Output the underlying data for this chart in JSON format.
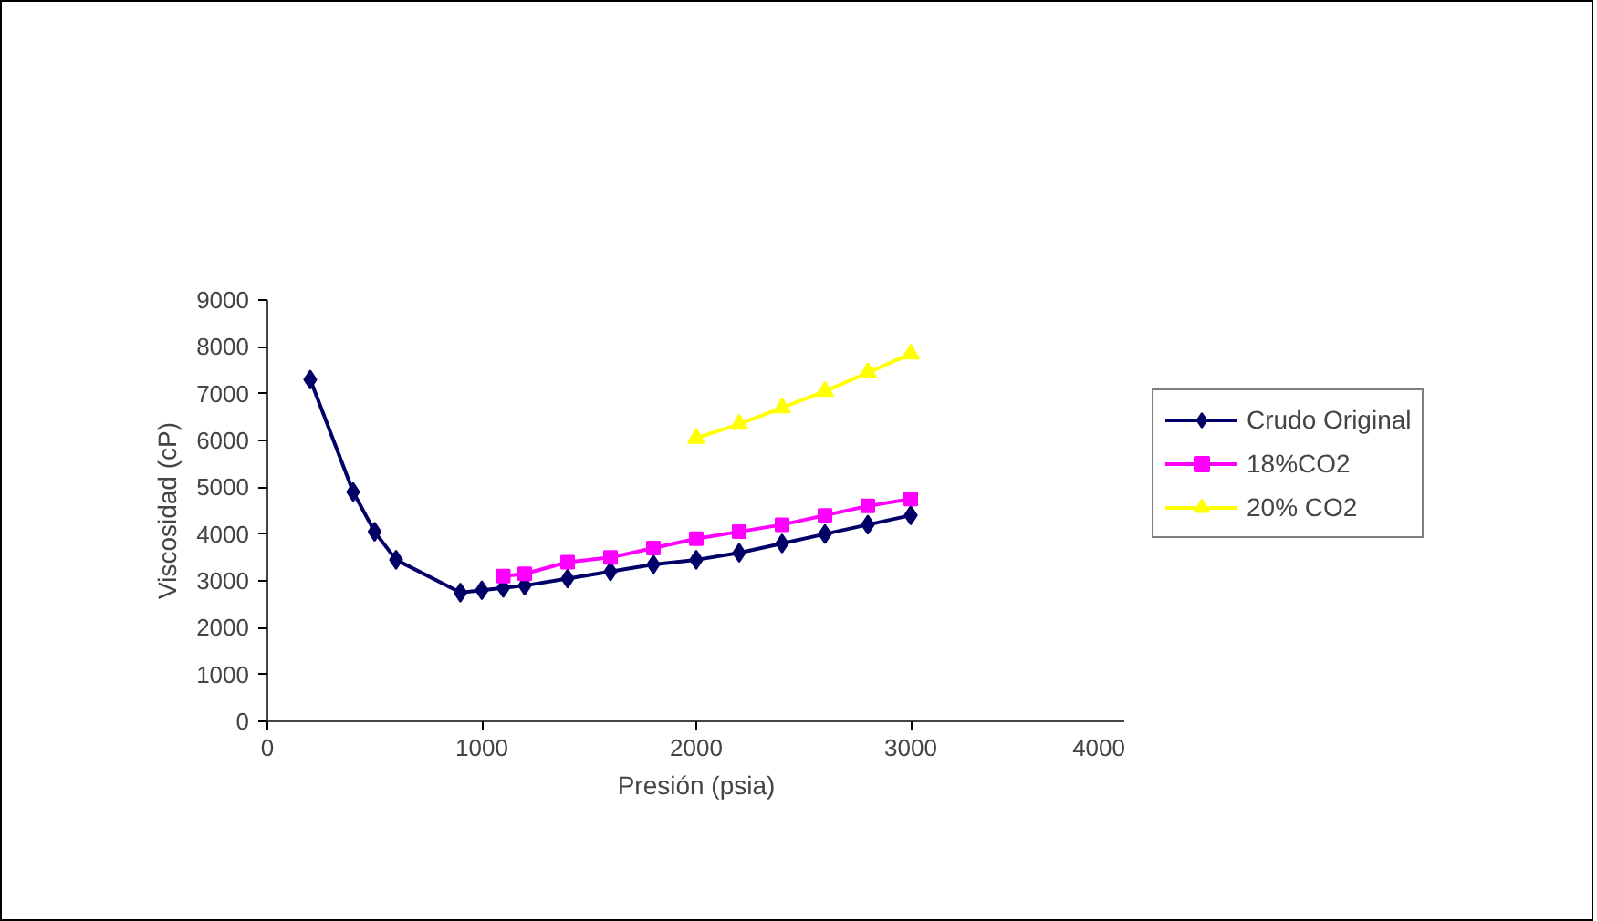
{
  "chart_data": {
    "type": "line",
    "xlabel": "Presión (psia)",
    "ylabel": "Viscosidad (cP)",
    "xlim": [
      0,
      4000
    ],
    "xticks": [
      0,
      1000,
      2000,
      3000,
      4000
    ],
    "ylim": [
      0,
      9000
    ],
    "yticks": [
      0,
      1000,
      2000,
      3000,
      4000,
      5000,
      6000,
      7000,
      8000,
      9000
    ],
    "grid": false,
    "legend": "right",
    "series": [
      {
        "name": "Crudo Original",
        "color": "#000066",
        "marker": "diamond",
        "x": [
          200,
          400,
          500,
          600,
          900,
          1000,
          1100,
          1200,
          1400,
          1600,
          1800,
          2000,
          2200,
          2400,
          2600,
          2800,
          3000
        ],
        "values": [
          7300,
          4900,
          4050,
          3450,
          2750,
          2800,
          2850,
          2900,
          3050,
          3200,
          3350,
          3450,
          3600,
          3800,
          4000,
          4200,
          4400
        ]
      },
      {
        "name": "18%CO2",
        "color": "#ff00ff",
        "marker": "square",
        "x": [
          1100,
          1200,
          1400,
          1600,
          1800,
          2000,
          2200,
          2400,
          2600,
          2800,
          3000
        ],
        "values": [
          3100,
          3150,
          3400,
          3500,
          3700,
          3900,
          4050,
          4200,
          4400,
          4600,
          4750
        ]
      },
      {
        "name": "20% CO2",
        "color": "#ffff00",
        "marker": "triangle",
        "x": [
          2000,
          2200,
          2400,
          2600,
          2800,
          3000
        ],
        "values": [
          6050,
          6350,
          6700,
          7050,
          7450,
          7850
        ]
      }
    ]
  }
}
